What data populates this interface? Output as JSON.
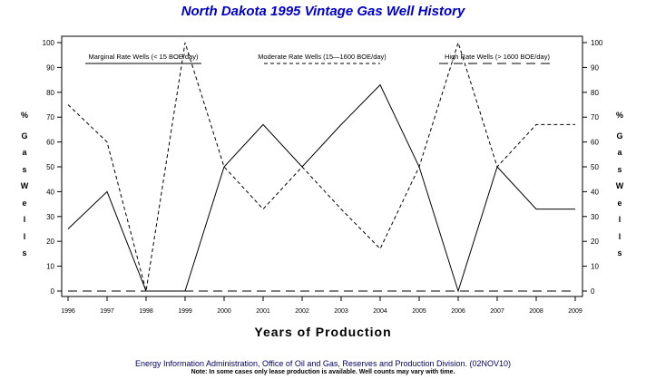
{
  "title": "North Dakota 1995 Vintage Gas Well History",
  "xlabel": "Years of Production",
  "ylabel_left": {
    "unit": "%",
    "word1": "Gas",
    "word2": "Wells"
  },
  "ylabel_right": {
    "unit": "%",
    "word1": "Gas",
    "word2": "Wells"
  },
  "source": "Energy Information Administration, Office of Oil and Gas, Reserves and Production Division. (02NOV10)",
  "note": "Note: In some cases only lease production is available. Well counts may vary with time.",
  "chart_data": {
    "type": "line",
    "categories": [
      "1996",
      "1997",
      "1998",
      "1999",
      "2000",
      "2001",
      "2002",
      "2003",
      "2004",
      "2005",
      "2006",
      "2007",
      "2008",
      "2009"
    ],
    "ylim": [
      0,
      100
    ],
    "yticks": [
      0,
      10,
      20,
      30,
      40,
      50,
      60,
      70,
      80,
      90,
      100
    ],
    "grid": false,
    "legend_position": "top",
    "series": [
      {
        "name": "Marginal Rate Wells (<  15 BOE/day)",
        "style": "solid",
        "values": [
          25,
          40,
          0,
          0,
          50,
          67,
          50,
          67,
          83,
          50,
          0,
          50,
          33,
          33
        ]
      },
      {
        "name": "Moderate Rate Wells (15—1600 BOE/day)",
        "style": "dashed",
        "values": [
          75,
          60,
          0,
          100,
          50,
          33,
          50,
          33,
          17,
          50,
          100,
          50,
          67,
          67
        ]
      },
      {
        "name": "High Rate Wells (> 1600 BOE/day)",
        "style": "longdash",
        "values": [
          0,
          0,
          0,
          0,
          0,
          0,
          0,
          0,
          0,
          0,
          0,
          0,
          0,
          0
        ]
      }
    ],
    "colors": {
      "line": "#000000",
      "title": "#0000cc",
      "source": "#000066"
    }
  }
}
